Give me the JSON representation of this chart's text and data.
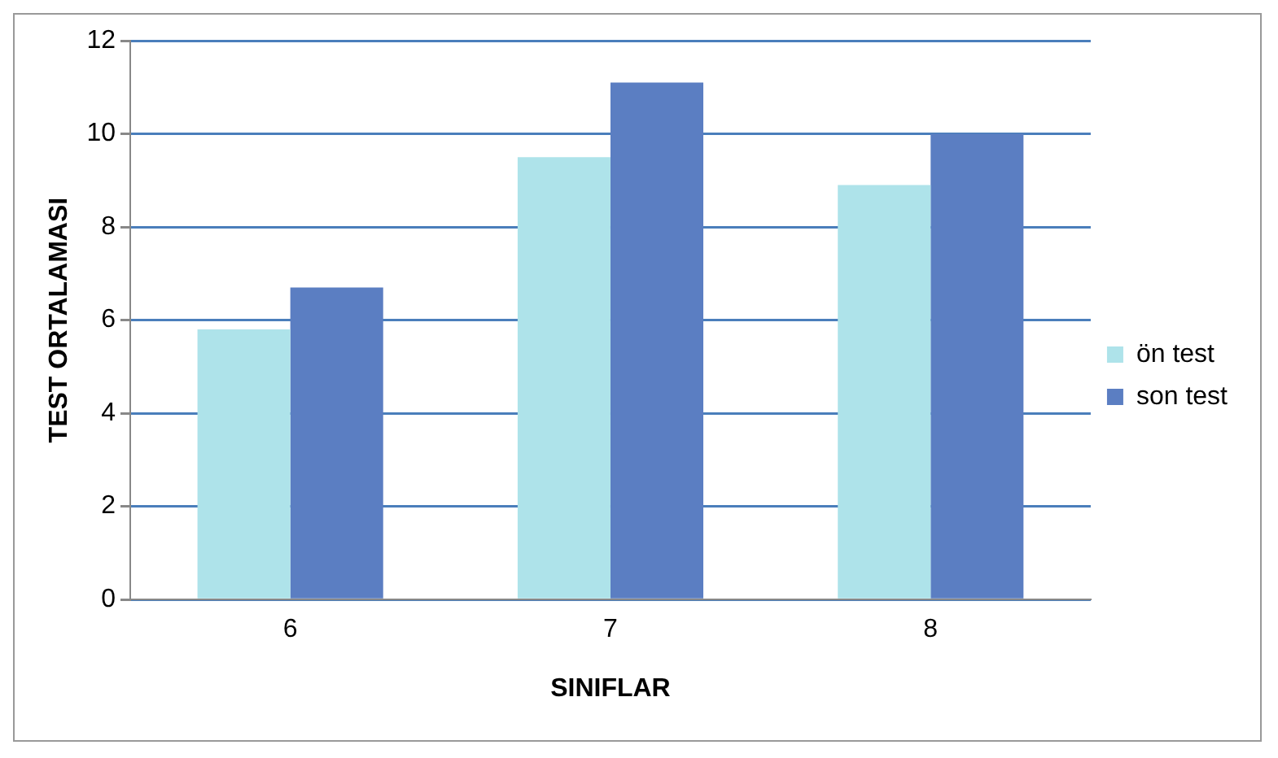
{
  "chart_data": {
    "type": "bar",
    "xlabel": "SINIFLAR",
    "ylabel": "TEST ORTALAMASI",
    "categories": [
      "6",
      "7",
      "8"
    ],
    "series": [
      {
        "name": "ön test",
        "color": "#aee3ea",
        "values": [
          5.8,
          9.5,
          8.9
        ]
      },
      {
        "name": "son test",
        "color": "#5b7ec2",
        "values": [
          6.7,
          11.1,
          10.0
        ]
      }
    ],
    "ylim": [
      0,
      12
    ],
    "yticks": [
      0,
      2,
      4,
      6,
      8,
      10,
      12
    ],
    "grid": "y",
    "legend": "right"
  }
}
